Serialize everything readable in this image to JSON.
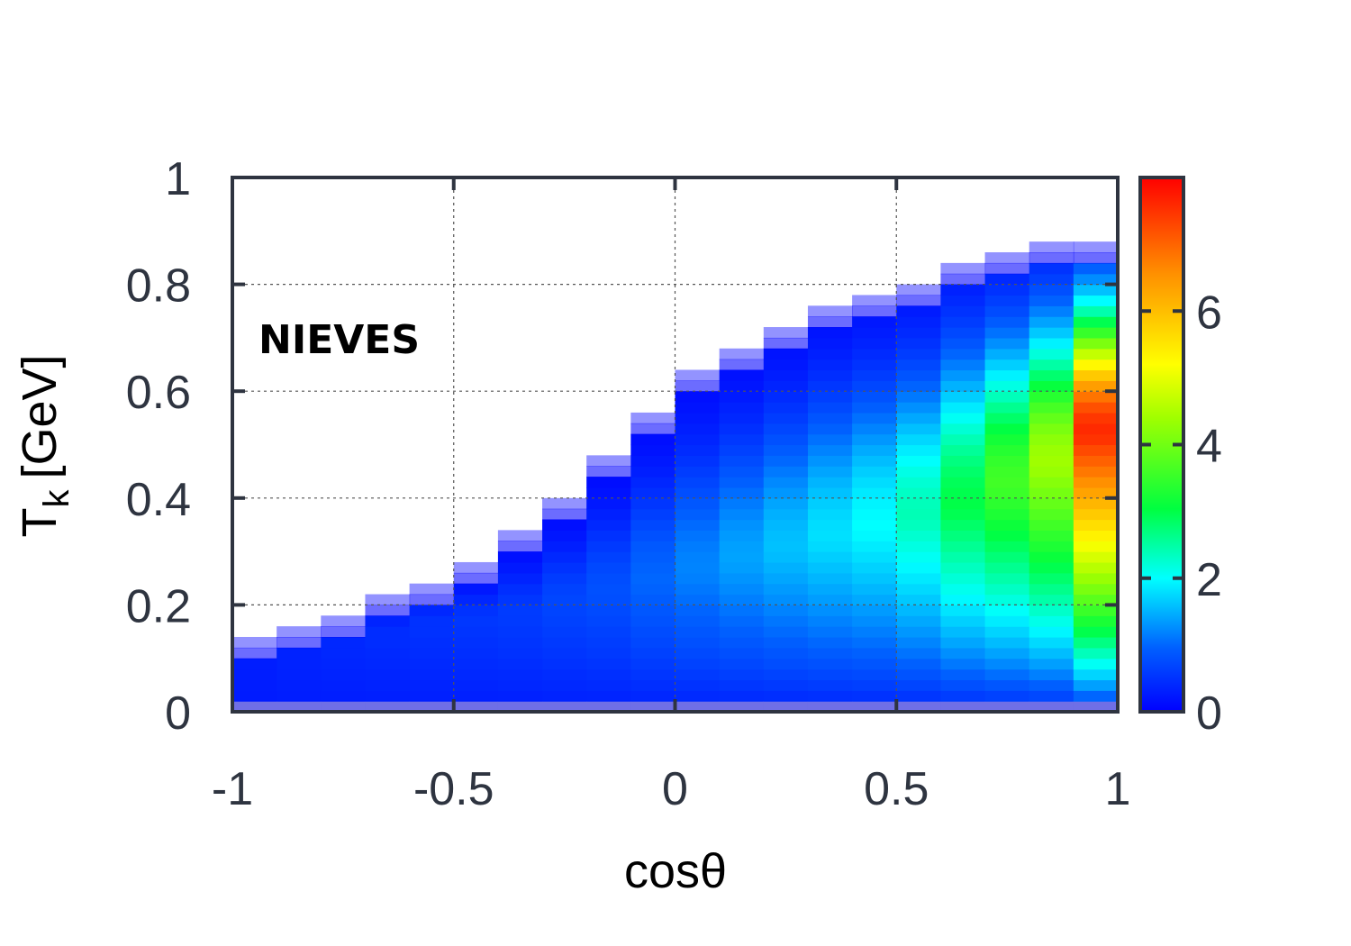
{
  "chart_data": {
    "type": "heatmap",
    "annotation": "NIEVES",
    "xlabel": "cosθ",
    "ylabel_main": "T",
    "ylabel_sub": "k",
    "ylabel_unit": "[GeV]",
    "xlim": [
      -1,
      1
    ],
    "ylim": [
      0,
      1
    ],
    "xticks": [
      "-1",
      "-0.5",
      "0",
      "0.5",
      "1"
    ],
    "yticks": [
      "0",
      "0.2",
      "0.4",
      "0.6",
      "0.8",
      "1"
    ],
    "colorbar": {
      "range": [
        0,
        8
      ],
      "ticks": [
        "0",
        "2",
        "4",
        "6"
      ]
    },
    "grid": true,
    "x_bins": 20,
    "y_bin_width": 0.02,
    "column_max_tk": [
      0.14,
      0.16,
      0.18,
      0.22,
      0.24,
      0.28,
      0.34,
      0.4,
      0.48,
      0.56,
      0.64,
      0.68,
      0.72,
      0.76,
      0.78,
      0.8,
      0.84,
      0.86,
      0.88,
      0.88
    ],
    "column_peak_tk": [
      0.08,
      0.1,
      0.12,
      0.14,
      0.16,
      0.17,
      0.18,
      0.2,
      0.22,
      0.24,
      0.26,
      0.28,
      0.3,
      0.32,
      0.34,
      0.36,
      0.38,
      0.42,
      0.46,
      0.52
    ],
    "column_peak_value": [
      0.3,
      0.35,
      0.4,
      0.45,
      0.5,
      0.55,
      0.6,
      0.7,
      0.8,
      1.0,
      1.2,
      1.4,
      1.6,
      1.8,
      2.0,
      2.4,
      3.0,
      3.6,
      4.4,
      7.6
    ],
    "color_scale": [
      "#0000ff",
      "#0080ff",
      "#00ffff",
      "#00ff40",
      "#a0ff00",
      "#ffff00",
      "#ff9000",
      "#ff0000"
    ]
  }
}
